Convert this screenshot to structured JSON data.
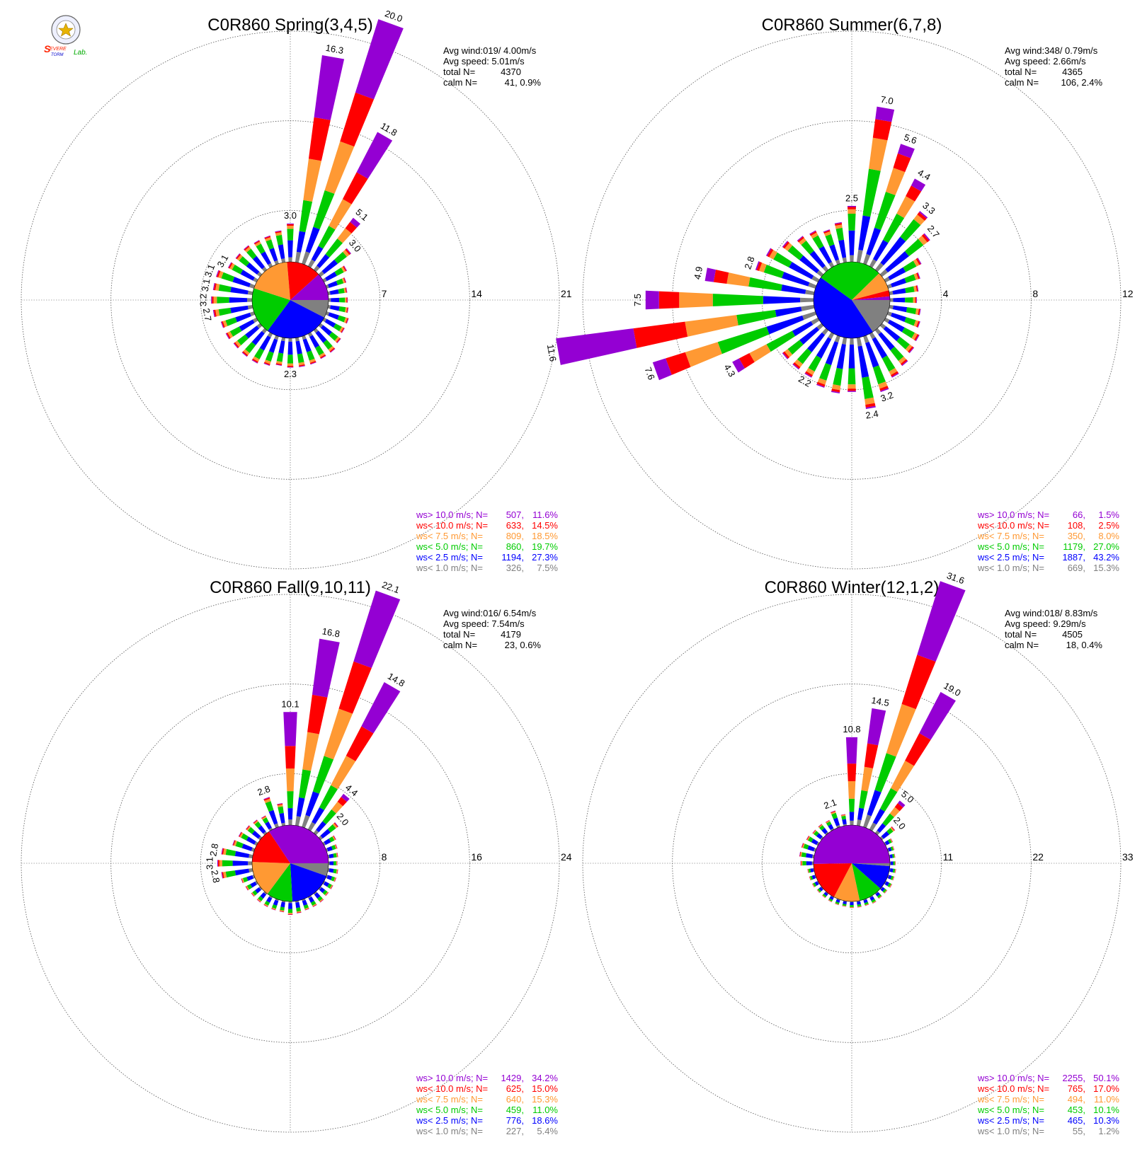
{
  "logo": {
    "line1": "SEVERE",
    "line2": "STORM",
    "line3": "Lab."
  },
  "colors": {
    "ws_gt_10": "#9400d3",
    "ws_lt_10": "#ff0000",
    "ws_lt_7_5": "#ff9933",
    "ws_lt_5": "#00cc00",
    "ws_lt_2_5": "#0000ff",
    "ws_lt_1": "#808080",
    "ring": "#555555"
  },
  "legend_labels": [
    "ws> 10.0 m/s; N=",
    "ws< 10.0 m/s; N=",
    "ws<  7.5 m/s; N=",
    "ws<  5.0 m/s; N=",
    "ws<  2.5 m/s; N=",
    "ws<  1.0 m/s; N="
  ],
  "chart_data": [
    {
      "type": "polar-bar",
      "title": "C0R860 Spring(3,4,5)",
      "stats": {
        "avg_wind": "Avg wind:019/ 4.00m/s",
        "avg_speed": "Avg speed: 5.01m/s",
        "total_label": "total N=",
        "total": "4370",
        "calm_label": "calm N=",
        "calm": "41,   0.9%"
      },
      "ring_max": 21,
      "ring_ticks": [
        "7",
        "14",
        "21"
      ],
      "directions": [
        0,
        10,
        20,
        30,
        40,
        50,
        60,
        70,
        80,
        90,
        100,
        110,
        120,
        130,
        140,
        150,
        160,
        170,
        180,
        190,
        200,
        210,
        220,
        230,
        240,
        250,
        260,
        270,
        280,
        290,
        300,
        310,
        320,
        330,
        340,
        350
      ],
      "totals": [
        3.0,
        16.3,
        20.0,
        11.8,
        5.1,
        3.0,
        2.0,
        1.6,
        1.5,
        1.5,
        1.6,
        1.8,
        1.8,
        2.0,
        2.2,
        2.2,
        2.3,
        2.3,
        2.3,
        2.2,
        2.4,
        2.6,
        2.6,
        2.6,
        2.7,
        2.7,
        3.1,
        3.2,
        3.1,
        3.1,
        2.5,
        2.4,
        2.4,
        2.3,
        2.3,
        2.5
      ],
      "bar_labels": {
        "0": "3.0",
        "10": "16.3",
        "20": "20.0",
        "30": "11.8",
        "40": "5.1",
        "50": "3.0",
        "180": "2.3",
        "260": "2.7",
        "270": "3.2",
        "280": "3.1",
        "290": "3.1",
        "300": "3.1"
      },
      "legend": [
        {
          "count": "507",
          "pct": "11.6%"
        },
        {
          "count": "633",
          "pct": "14.5%"
        },
        {
          "count": "809",
          "pct": "18.5%"
        },
        {
          "count": "860",
          "pct": "19.7%"
        },
        {
          "count": "1194",
          "pct": "27.3%"
        },
        {
          "count": "326",
          "pct": "7.5%"
        }
      ],
      "shares": [
        11.6,
        14.5,
        18.5,
        19.7,
        27.3,
        7.5
      ]
    },
    {
      "type": "polar-bar",
      "title": "C0R860 Summer(6,7,8)",
      "stats": {
        "avg_wind": "Avg wind:348/ 0.79m/s",
        "avg_speed": "Avg speed: 2.66m/s",
        "total_label": "total N=",
        "total": "4365",
        "calm_label": "calm N=",
        "calm": "106,   2.4%"
      },
      "ring_max": 12,
      "ring_ticks": [
        "4",
        "8",
        "12"
      ],
      "directions": [
        0,
        10,
        20,
        30,
        40,
        50,
        60,
        70,
        80,
        90,
        100,
        110,
        120,
        130,
        140,
        150,
        160,
        170,
        180,
        190,
        200,
        210,
        220,
        230,
        240,
        250,
        260,
        270,
        280,
        290,
        300,
        310,
        320,
        330,
        340,
        350
      ],
      "totals": [
        2.5,
        7.0,
        5.6,
        4.4,
        3.3,
        2.7,
        1.8,
        1.5,
        1.3,
        1.2,
        1.4,
        1.5,
        1.7,
        1.8,
        2.0,
        2.2,
        2.6,
        3.2,
        2.4,
        2.5,
        2.4,
        2.2,
        2.2,
        2.2,
        4.3,
        7.6,
        11.6,
        7.5,
        4.9,
        2.8,
        2.6,
        2.2,
        1.9,
        1.8,
        1.6,
        1.8
      ],
      "bar_labels": {
        "0": "2.5",
        "10": "7.0",
        "20": "5.6",
        "30": "4.4",
        "40": "3.3",
        "50": "2.7",
        "160": "3.2",
        "170": "2.4",
        "210": "2.2",
        "240": "4.3",
        "250": "7.6",
        "260": "11.6",
        "270": "7.5",
        "280": "4.9",
        "290": "2.8"
      },
      "legend": [
        {
          "count": "66",
          "pct": "1.5%"
        },
        {
          "count": "108",
          "pct": "2.5%"
        },
        {
          "count": "350",
          "pct": "8.0%"
        },
        {
          "count": "1179",
          "pct": "27.0%"
        },
        {
          "count": "1887",
          "pct": "43.2%"
        },
        {
          "count": "669",
          "pct": "15.3%"
        }
      ],
      "shares": [
        1.5,
        2.5,
        8.0,
        27.0,
        43.2,
        15.3
      ]
    },
    {
      "type": "polar-bar",
      "title": "C0R860 Fall(9,10,11)",
      "stats": {
        "avg_wind": "Avg wind:016/ 6.54m/s",
        "avg_speed": "Avg speed: 7.54m/s",
        "total_label": "total N=",
        "total": "4179",
        "calm_label": "calm N=",
        "calm": "23,   0.6%"
      },
      "ring_max": 24,
      "ring_ticks": [
        "8",
        "16",
        "24"
      ],
      "directions": [
        0,
        10,
        20,
        30,
        40,
        50,
        60,
        70,
        80,
        90,
        100,
        110,
        120,
        130,
        140,
        150,
        160,
        170,
        180,
        190,
        200,
        210,
        220,
        230,
        240,
        250,
        260,
        270,
        280,
        290,
        300,
        310,
        320,
        330,
        340,
        350
      ],
      "totals": [
        10.1,
        16.8,
        22.1,
        14.8,
        4.4,
        2.0,
        1.2,
        1.0,
        0.9,
        0.8,
        0.9,
        0.9,
        0.9,
        0.9,
        1.0,
        1.0,
        1.0,
        1.1,
        1.2,
        1.0,
        1.0,
        1.0,
        1.0,
        1.0,
        1.1,
        1.2,
        2.8,
        3.1,
        2.8,
        2.0,
        1.8,
        1.6,
        1.5,
        1.4,
        2.8,
        2.0
      ],
      "bar_labels": {
        "0": "10.1",
        "10": "16.8",
        "20": "22.1",
        "30": "14.8",
        "40": "4.4",
        "50": "2.0",
        "260": "2.8",
        "270": "3.1",
        "280": "2.8",
        "340": "2.8"
      },
      "legend": [
        {
          "count": "1429",
          "pct": "34.2%"
        },
        {
          "count": "625",
          "pct": "15.0%"
        },
        {
          "count": "640",
          "pct": "15.3%"
        },
        {
          "count": "459",
          "pct": "11.0%"
        },
        {
          "count": "776",
          "pct": "18.6%"
        },
        {
          "count": "227",
          "pct": "5.4%"
        }
      ],
      "shares": [
        34.2,
        15.0,
        15.3,
        11.0,
        18.6,
        5.4
      ]
    },
    {
      "type": "polar-bar",
      "title": "C0R860 Winter(12,1,2)",
      "stats": {
        "avg_wind": "Avg wind:018/ 8.83m/s",
        "avg_speed": "Avg speed: 9.29m/s",
        "total_label": "total N=",
        "total": "4505",
        "calm_label": "calm N=",
        "calm": "18,   0.4%"
      },
      "ring_max": 33,
      "ring_ticks": [
        "11",
        "22",
        "33"
      ],
      "directions": [
        0,
        10,
        20,
        30,
        40,
        50,
        60,
        70,
        80,
        90,
        100,
        110,
        120,
        130,
        140,
        150,
        160,
        170,
        180,
        190,
        200,
        210,
        220,
        230,
        240,
        250,
        260,
        270,
        280,
        290,
        300,
        310,
        320,
        330,
        340,
        350
      ],
      "totals": [
        10.8,
        14.5,
        31.6,
        19.0,
        5.0,
        2.0,
        1.0,
        0.8,
        0.7,
        0.7,
        0.8,
        0.8,
        0.9,
        0.8,
        0.8,
        0.9,
        0.8,
        0.8,
        0.8,
        0.7,
        0.7,
        0.7,
        0.7,
        0.7,
        0.8,
        0.8,
        0.8,
        1.6,
        1.8,
        1.8,
        1.6,
        1.4,
        1.4,
        1.3,
        2.1,
        1.4
      ],
      "bar_labels": {
        "0": "10.8",
        "10": "14.5",
        "20": "31.6",
        "30": "19.0",
        "40": "5.0",
        "50": "2.0",
        "340": "2.1"
      },
      "legend": [
        {
          "count": "2255",
          "pct": "50.1%"
        },
        {
          "count": "765",
          "pct": "17.0%"
        },
        {
          "count": "494",
          "pct": "11.0%"
        },
        {
          "count": "453",
          "pct": "10.1%"
        },
        {
          "count": "465",
          "pct": "10.3%"
        },
        {
          "count": "55",
          "pct": "1.2%"
        }
      ],
      "shares": [
        50.1,
        17.0,
        11.0,
        10.1,
        10.3,
        1.2
      ]
    }
  ]
}
